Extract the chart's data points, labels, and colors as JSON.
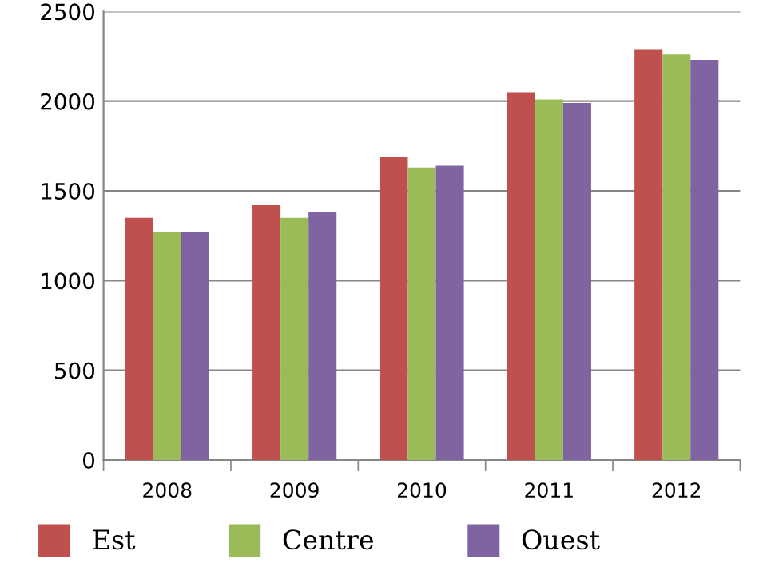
{
  "chart_data": {
    "type": "bar",
    "categories": [
      "2008",
      "2009",
      "2010",
      "2011",
      "2012"
    ],
    "series": [
      {
        "name": "Est",
        "color": "#c0504d",
        "values": [
          1350,
          1420,
          1690,
          2050,
          2290
        ]
      },
      {
        "name": "Centre",
        "color": "#9bbb59",
        "values": [
          1270,
          1350,
          1630,
          2010,
          2260
        ]
      },
      {
        "name": "Ouest",
        "color": "#8064a2",
        "values": [
          1270,
          1380,
          1640,
          1990,
          2230
        ]
      }
    ],
    "ylim": [
      0,
      2500
    ],
    "yticks": [
      0,
      500,
      1000,
      1500,
      2000,
      2500
    ],
    "grid": "y",
    "legend": "bottom"
  }
}
